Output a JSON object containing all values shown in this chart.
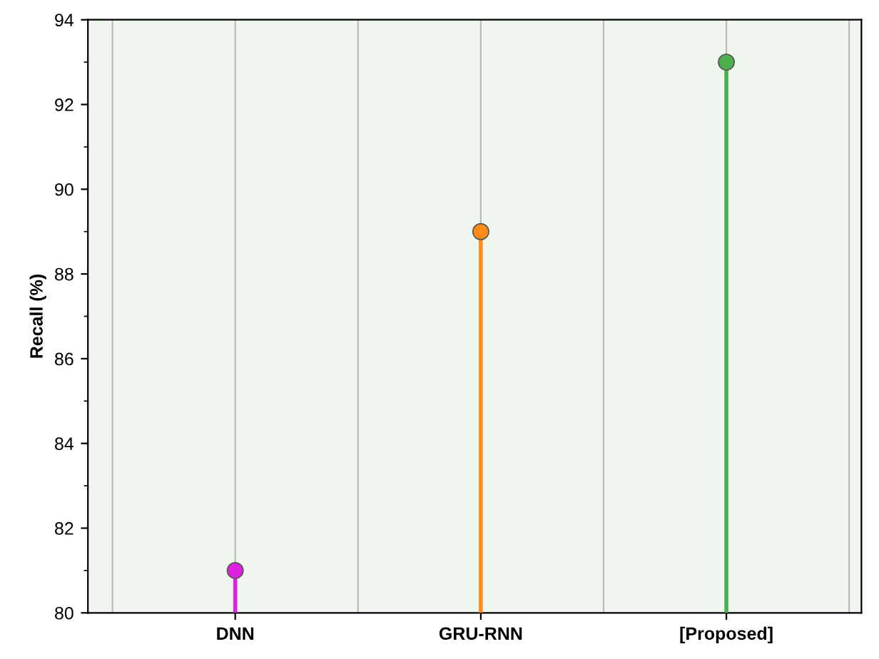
{
  "chart_data": {
    "type": "lollipop",
    "ylabel": "Recall (%)",
    "categories": [
      "DNN",
      "GRU-RNN",
      "[Proposed]"
    ],
    "values": [
      81,
      89,
      93
    ],
    "colors": [
      "#e020e0",
      "#ff8c1a",
      "#4caf50"
    ],
    "ylim": [
      80,
      94
    ],
    "yticks": [
      80,
      82,
      84,
      86,
      88,
      90,
      92,
      94
    ],
    "grid": "x",
    "marker": "circle"
  }
}
